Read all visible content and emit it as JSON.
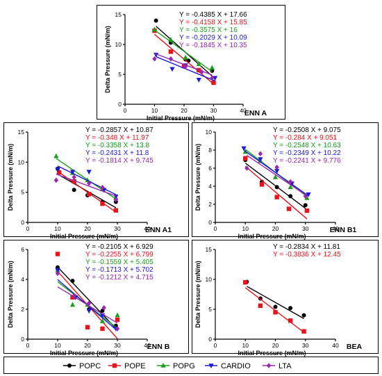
{
  "colors": {
    "POPC": "#000000",
    "POPE": "#e8141b",
    "POPG": "#1b9e1b",
    "CARDIO": "#1a1ad6",
    "LTA": "#9b27b0"
  },
  "legend": {
    "items": [
      {
        "name": "POPC",
        "marker": "circle"
      },
      {
        "name": "POPE",
        "marker": "square"
      },
      {
        "name": "POPG",
        "marker": "triangle-up"
      },
      {
        "name": "CARDIO",
        "marker": "triangle-down"
      },
      {
        "name": "LTA",
        "marker": "diamond"
      }
    ]
  },
  "chart_data": [
    {
      "type": "scatter",
      "title": "ENN A",
      "xlabel": "Initial Pressure (mN/m)",
      "ylabel": "Delta Pressure (mN/m)",
      "xlim": [
        0,
        40
      ],
      "ylim": [
        0,
        15
      ],
      "xticks": [
        0,
        10,
        20,
        30,
        40
      ],
      "yticks": [
        0,
        5,
        10,
        15
      ],
      "grid": false,
      "legend": "none",
      "series": [
        {
          "name": "POPC",
          "equation": "Y = -0.4385 X + 17.66",
          "slope": -0.4385,
          "intercept": 17.66,
          "x": [
            10.5,
            15.5,
            20.5,
            21.5,
            29.5
          ],
          "y": [
            14.0,
            10.3,
            7.5,
            7.3,
            5.6
          ]
        },
        {
          "name": "POPE",
          "equation": "Y = -0.4158 X + 15.85",
          "slope": -0.4158,
          "intercept": 15.85,
          "x": [
            10,
            15.5,
            20,
            25,
            30
          ],
          "y": [
            12.3,
            8.8,
            6.4,
            5.7,
            3.6
          ]
        },
        {
          "name": "POPG",
          "equation": "Y = -0.3575 X + 16",
          "slope": -0.3575,
          "intercept": 16,
          "x": [
            10,
            15.5,
            20.5,
            25,
            29.5
          ],
          "y": [
            12.5,
            10.8,
            7.8,
            6.7,
            6.1
          ]
        },
        {
          "name": "CARDIO",
          "equation": "Y = -0.2029 X + 10.09",
          "slope": -0.2029,
          "intercept": 10.09,
          "x": [
            10.5,
            16,
            20.5,
            25,
            30.5
          ],
          "y": [
            8.3,
            5.9,
            6.5,
            4.1,
            4.4
          ]
        },
        {
          "name": "LTA",
          "equation": "Y = -0.1845 X + 10.35",
          "slope": -0.1845,
          "intercept": 10.35,
          "x": [
            10,
            15.5,
            20.5,
            26,
            29.5
          ],
          "y": [
            7.6,
            7.6,
            6.3,
            5.4,
            4.4
          ]
        }
      ]
    },
    {
      "type": "scatter",
      "title": "ENN A1",
      "xlabel": "Initial Pressure (mN/m)",
      "ylabel": "Delta Pressure (mN/m)",
      "xlim": [
        0,
        40
      ],
      "ylim": [
        0,
        15
      ],
      "xticks": [
        0,
        10,
        20,
        30,
        40
      ],
      "yticks": [
        0,
        5,
        10,
        15
      ],
      "grid": false,
      "legend": "none",
      "series": [
        {
          "name": "POPC",
          "equation": "Y = -0.2857 X + 10.87",
          "slope": -0.2857,
          "intercept": 10.87,
          "x": [
            10,
            15.5,
            20,
            25,
            29.5
          ],
          "y": [
            8.9,
            5.4,
            4.5,
            3.4,
            3.4
          ]
        },
        {
          "name": "POPE",
          "equation": "Y = -0.348 X + 11.97",
          "slope": -0.348,
          "intercept": 11.97,
          "x": [
            10.5,
            15.5,
            20.5,
            25,
            29.5
          ],
          "y": [
            8.3,
            6.8,
            4.7,
            3.1,
            2.0
          ]
        },
        {
          "name": "POPG",
          "equation": "Y = -0.3358 X + 13.8",
          "slope": -0.3358,
          "intercept": 13.8,
          "x": [
            9.5,
            15,
            20,
            25,
            29.5
          ],
          "y": [
            11.0,
            8.2,
            7.0,
            5.5,
            4.1
          ]
        },
        {
          "name": "CARDIO",
          "equation": "Y = -0.2431 X + 11.8",
          "slope": -0.2431,
          "intercept": 11.8,
          "x": [
            10,
            15,
            20.5,
            25.5,
            29.5
          ],
          "y": [
            8.8,
            8.4,
            8.4,
            5.4,
            4.3
          ]
        },
        {
          "name": "LTA",
          "equation": "Y = -0.1814 X + 9.745",
          "slope": -0.1814,
          "intercept": 9.745,
          "x": [
            9.5,
            15.5,
            20.5,
            25,
            29.5
          ],
          "y": [
            7.0,
            7.5,
            6.5,
            5.8,
            3.8
          ]
        }
      ]
    },
    {
      "type": "scatter",
      "title": "ENN B1",
      "xlabel": "Initial Pressure (mN/m)",
      "ylabel": "Delta Pressure (mN/m)",
      "xlim": [
        0,
        40
      ],
      "ylim": [
        0,
        10
      ],
      "xticks": [
        0,
        10,
        20,
        30,
        40
      ],
      "yticks": [
        0,
        2,
        4,
        6,
        8,
        10
      ],
      "grid": false,
      "legend": "none",
      "series": [
        {
          "name": "POPC",
          "equation": "Y = -0.2508 X + 9.075",
          "slope": -0.2508,
          "intercept": 9.075,
          "x": [
            10,
            15.5,
            20.5,
            25,
            30
          ],
          "y": [
            6.9,
            4.5,
            3.9,
            2.9,
            1.9
          ]
        },
        {
          "name": "POPE",
          "equation": "Y = -0.284 X + 9.051",
          "slope": -0.284,
          "intercept": 9.051,
          "x": [
            10,
            15.5,
            20.5,
            24.5,
            30.5
          ],
          "y": [
            7.1,
            4.2,
            2.8,
            1.5,
            1.3
          ]
        },
        {
          "name": "POPG",
          "equation": "Y = -0.2548 X + 10.63",
          "slope": -0.2548,
          "intercept": 10.63,
          "x": [
            10,
            15,
            20,
            25,
            30.5
          ],
          "y": [
            7.8,
            6.8,
            5.0,
            3.9,
            2.7
          ]
        },
        {
          "name": "CARDIO",
          "equation": "Y = -0.2349 X + 10.22",
          "slope": -0.2349,
          "intercept": 10.22,
          "x": [
            9.5,
            15,
            20.5,
            25.5,
            31
          ],
          "y": [
            8.2,
            7.0,
            5.7,
            4.3,
            3.1
          ]
        },
        {
          "name": "LTA",
          "equation": "Y = -0.2241 X + 9.776",
          "slope": -0.2241,
          "intercept": 9.776,
          "x": [
            10.5,
            15,
            20.5,
            25,
            30
          ],
          "y": [
            6.0,
            7.6,
            6.1,
            4.5,
            2.9
          ]
        }
      ]
    },
    {
      "type": "scatter",
      "title": "ENN B",
      "xlabel": "Initial Pressure (mN/m)",
      "ylabel": "Delta Pressure (mN/m)",
      "xlim": [
        0,
        40
      ],
      "ylim": [
        0,
        6
      ],
      "xticks": [
        0,
        10,
        20,
        30,
        40
      ],
      "yticks": [
        0,
        2,
        4,
        6
      ],
      "grid": false,
      "legend": "none",
      "series": [
        {
          "name": "POPC",
          "equation": "Y = -0.2105 X + 6.929",
          "slope": -0.2105,
          "intercept": 6.929,
          "x": [
            10,
            15,
            20.5,
            25,
            29.5
          ],
          "y": [
            4.8,
            3.9,
            2.0,
            1.9,
            0.9
          ]
        },
        {
          "name": "POPE",
          "equation": "Y = -0.2255 X + 6.799",
          "slope": -0.2255,
          "intercept": 6.799,
          "x": [
            10,
            15,
            20,
            25,
            30
          ],
          "y": [
            5.7,
            2.8,
            0.8,
            0.7,
            1.3
          ]
        },
        {
          "name": "POPG",
          "equation": "Y = -0.1559 X + 5.405",
          "slope": -0.1559,
          "intercept": 5.405,
          "x": [
            10,
            15,
            20,
            25,
            30
          ],
          "y": [
            4.6,
            2.3,
            2.3,
            1.2,
            1.6
          ]
        },
        {
          "name": "CARDIO",
          "equation": "Y = -0.1713 X + 5.702",
          "slope": -0.1713,
          "intercept": 5.702,
          "x": [
            10,
            16,
            20.5,
            25,
            29.5
          ],
          "y": [
            4.6,
            2.8,
            1.9,
            1.6,
            0.7
          ]
        },
        {
          "name": "LTA",
          "equation": "Y = -0.1212 X + 4.715",
          "slope": -0.1212,
          "intercept": 4.715,
          "x": [
            10,
            15.5,
            20.5,
            25.5,
            30
          ],
          "y": [
            4.4,
            2.9,
            2.4,
            2.1,
            0.7
          ]
        }
      ]
    },
    {
      "type": "scatter",
      "title": "BEA",
      "xlabel": "Initial Pressure (mN/m)",
      "ylabel": "Delta Pressure (mN/m)",
      "xlim": [
        0,
        40
      ],
      "ylim": [
        0,
        15
      ],
      "xticks": [
        0,
        10,
        20,
        30,
        40
      ],
      "yticks": [
        0,
        5,
        10,
        15
      ],
      "grid": false,
      "legend": "none",
      "series": [
        {
          "name": "POPC",
          "equation": "Y = -0.2834 X + 11.81",
          "slope": -0.2834,
          "intercept": 11.81,
          "x": [
            10.5,
            15,
            20,
            25,
            29.5
          ],
          "y": [
            9.6,
            6.8,
            5.4,
            5.2,
            4.0
          ]
        },
        {
          "name": "POPE",
          "equation": "Y = -0.3836 X + 12.45",
          "slope": -0.3836,
          "intercept": 12.45,
          "x": [
            10,
            15,
            20,
            25,
            29.5
          ],
          "y": [
            9.5,
            5.6,
            4.5,
            3.1,
            1.3
          ]
        }
      ]
    }
  ]
}
